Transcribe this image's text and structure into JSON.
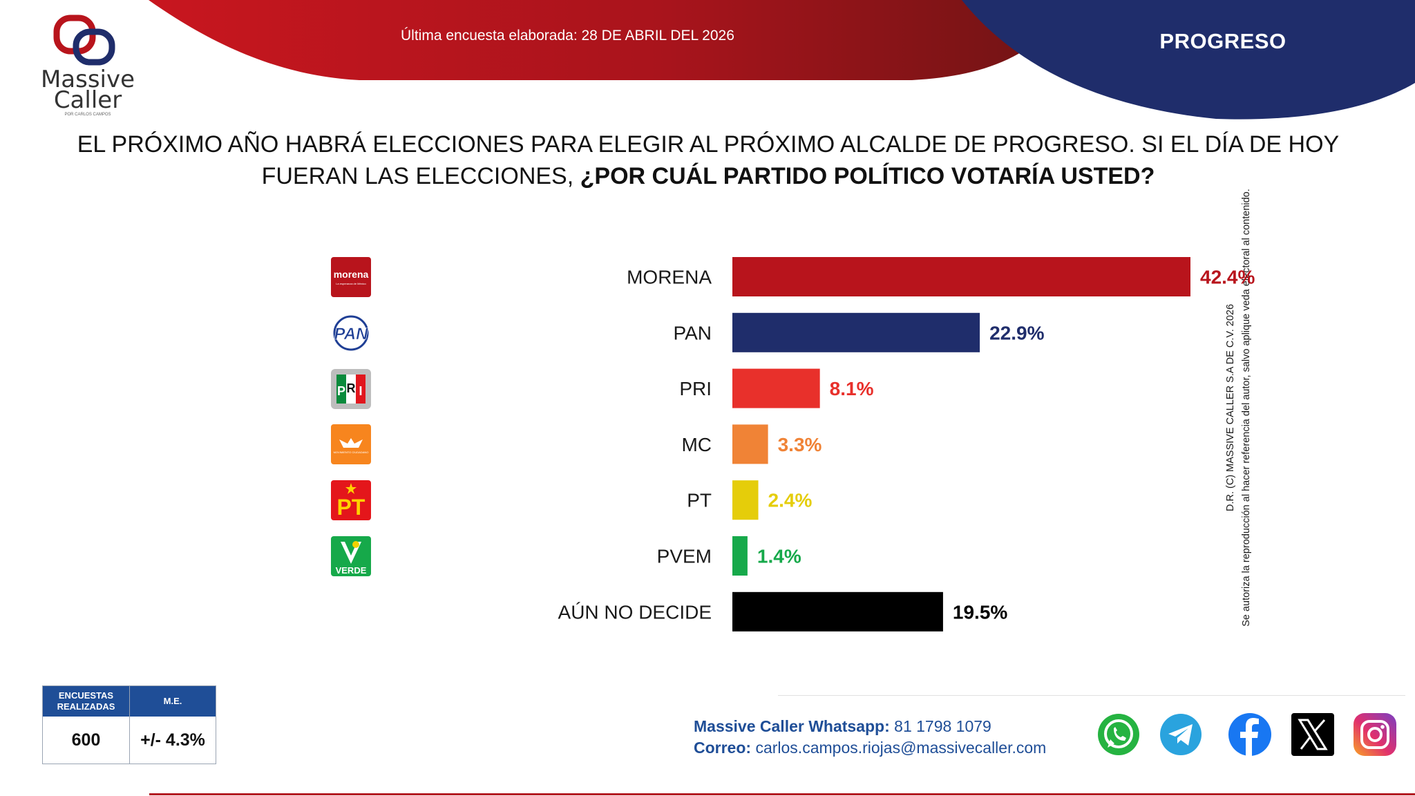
{
  "header": {
    "date_line": "Última encuesta elaborada: 28 DE ABRIL DEL 2026",
    "region": "PROGRESO",
    "colors": {
      "red": "#b8141c",
      "navy": "#1f2d6b"
    }
  },
  "logo": {
    "name_line1": "Massive",
    "name_line2": "Caller",
    "tagline": "POR CARLOS CAMPOS"
  },
  "question": {
    "part1": "EL PRÓXIMO AÑO HABRÁ ELECCIONES PARA ELEGIR AL PRÓXIMO ALCALDE DE PROGRESO. SI EL DÍA DE HOY FUERAN LAS ELECCIONES, ",
    "part2": "¿POR CUÁL PARTIDO POLÍTICO VOTARÍA USTED?"
  },
  "copyright": {
    "line1": "D.R. (C) MASSIVE CALLER S.A DE C.V. 2026",
    "line2": "Se autoriza la reproducción al hacer referencia del autor, salvo aplique veda electoral al contenido."
  },
  "chart_data": {
    "type": "bar",
    "orientation": "horizontal",
    "categories": [
      "MORENA",
      "PAN",
      "PRI",
      "MC",
      "PT",
      "PVEM",
      "AÚN NO DECIDE"
    ],
    "values": [
      42.4,
      22.9,
      8.1,
      3.3,
      2.4,
      1.4,
      19.5
    ],
    "value_labels": [
      "42.4%",
      "22.9%",
      "8.1%",
      "3.3%",
      "2.4%",
      "1.4%",
      "19.5%"
    ],
    "colors": [
      "#b8141c",
      "#1f2d6b",
      "#e8302b",
      "#f08336",
      "#e5cd0a",
      "#16a94a",
      "#000000"
    ],
    "label_colors": [
      "#b8141c",
      "#1f2d6b",
      "#e8302b",
      "#f08336",
      "#e5cd0a",
      "#16a94a",
      "#000000"
    ],
    "xlim": [
      0,
      42.4
    ],
    "grid": false,
    "legend": "none",
    "party_logos": [
      {
        "name": "morena-logo",
        "text": "morena",
        "subtext": "La esperanza de México",
        "bg": "#b8141c"
      },
      {
        "name": "pan-logo",
        "text": "PAN",
        "bg": "#ffffff"
      },
      {
        "name": "pri-logo",
        "text": "PRI",
        "bg": "#ffffff"
      },
      {
        "name": "mc-logo",
        "text": "MOVIMIENTO CIUDADANO",
        "bg": "#f7851e"
      },
      {
        "name": "pt-logo",
        "text": "PT",
        "bg": "#e4161b"
      },
      {
        "name": "pvem-logo",
        "text": "VERDE",
        "bg": "#16a94a"
      },
      null
    ]
  },
  "survey": {
    "col1_header_l1": "ENCUESTAS",
    "col1_header_l2": "REALIZADAS",
    "col2_header": "M.E.",
    "col1_value": "600",
    "col2_value": "+/- 4.3%"
  },
  "contact": {
    "whatsapp_label": "Massive Caller Whatsapp:",
    "whatsapp_value": "81 1798 1079",
    "email_label": "Correo:",
    "email_value": "carlos.campos.riojas@massivecaller.com"
  },
  "social_icons": [
    "whatsapp-icon",
    "telegram-icon",
    "facebook-icon",
    "x-icon",
    "instagram-icon"
  ]
}
